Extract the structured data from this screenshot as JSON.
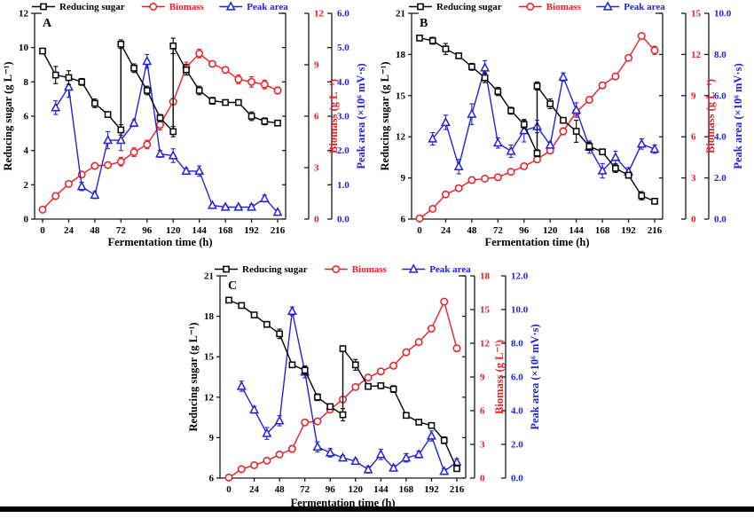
{
  "figure": {
    "background": "#ffffff",
    "bottom_rule_color": "#000000"
  },
  "colors": {
    "reducing_sugar": "#000000",
    "biomass": "#ed1c24",
    "peak_area": "#2222dd",
    "axis_line": "#1a1a1a"
  },
  "legend": {
    "items": [
      {
        "key": "reducing_sugar",
        "label": "Reducing sugar",
        "marker": "square"
      },
      {
        "key": "biomass",
        "label": "Biomass",
        "marker": "circle"
      },
      {
        "key": "peak_area",
        "label": "Peak area",
        "marker": "triangle"
      }
    ]
  },
  "xaxis": {
    "label": "Fermentation time (h)",
    "min": 0,
    "max": 216,
    "tick_step": 24
  },
  "chart_data": [
    {
      "type": "line",
      "panel": "A",
      "axes": {
        "left": {
          "label": "Reducing sugar (g L⁻¹)",
          "min": 0,
          "max": 12,
          "step": 2,
          "decimals": 0,
          "color": "#000000"
        },
        "biomass": {
          "label": "Biomass (g L⁻¹)",
          "min": 0,
          "max": 12,
          "step": 3,
          "decimals": 0,
          "color": "#ed1c24"
        },
        "peak": {
          "label": "Peak area (×10⁶ mV·s)",
          "min": 0,
          "max": 6,
          "step": 1,
          "decimals": 1,
          "color": "#2222dd"
        }
      },
      "series": {
        "reducing_sugar": [
          [
            0,
            9.8,
            0.15
          ],
          [
            12,
            8.4,
            0.5
          ],
          [
            24,
            8.25,
            0.4
          ],
          [
            36,
            8.0,
            0.2
          ],
          [
            48,
            6.75,
            0.25
          ],
          [
            60,
            6.1,
            0.15
          ],
          [
            72,
            5.2,
            0.3
          ],
          [
            72,
            10.2,
            0.25
          ],
          [
            84,
            8.8,
            0.25
          ],
          [
            96,
            7.5,
            0.25
          ],
          [
            108,
            5.9,
            0.2
          ],
          [
            120,
            5.1,
            0.3
          ],
          [
            120,
            10.1,
            0.45
          ],
          [
            132,
            8.7,
            0.3
          ],
          [
            144,
            7.5,
            0.25
          ],
          [
            156,
            6.9,
            0.2
          ],
          [
            168,
            6.8,
            0.1
          ],
          [
            180,
            6.8,
            0.1
          ],
          [
            192,
            6.0,
            0.25
          ],
          [
            204,
            5.7,
            0.2
          ],
          [
            216,
            5.6,
            0.1
          ]
        ],
        "biomass": [
          [
            0,
            0.55,
            0.05
          ],
          [
            12,
            1.35,
            0.1
          ],
          [
            24,
            2.05,
            0.1
          ],
          [
            36,
            2.6,
            0.12
          ],
          [
            48,
            3.1,
            0.12
          ],
          [
            60,
            3.15,
            0.15
          ],
          [
            72,
            3.35,
            0.25
          ],
          [
            84,
            3.9,
            0.25
          ],
          [
            96,
            4.35,
            0.25
          ],
          [
            108,
            5.5,
            0.3
          ],
          [
            120,
            6.85,
            0.1
          ],
          [
            132,
            8.85,
            0.3
          ],
          [
            144,
            9.65,
            0.25
          ],
          [
            156,
            9.05,
            0.15
          ],
          [
            168,
            8.7,
            0.15
          ],
          [
            180,
            8.15,
            0.25
          ],
          [
            192,
            8.0,
            0.3
          ],
          [
            204,
            7.85,
            0.25
          ],
          [
            216,
            7.5,
            0.2
          ]
        ],
        "peak_area": [
          [
            12,
            3.25,
            0.2
          ],
          [
            24,
            3.85,
            0.3
          ],
          [
            36,
            0.95,
            0.12
          ],
          [
            48,
            0.7,
            0.1
          ],
          [
            60,
            2.3,
            0.25
          ],
          [
            72,
            2.3,
            0.3
          ],
          [
            84,
            2.8,
            0.1
          ],
          [
            96,
            4.6,
            0.2
          ],
          [
            108,
            1.9,
            0.1
          ],
          [
            120,
            1.85,
            0.2
          ],
          [
            132,
            1.4,
            0.08
          ],
          [
            144,
            1.4,
            0.15
          ],
          [
            156,
            0.4,
            0.05
          ],
          [
            168,
            0.35,
            0.05
          ],
          [
            180,
            0.35,
            0.05
          ],
          [
            192,
            0.35,
            0.08
          ],
          [
            204,
            0.6,
            0.1
          ],
          [
            216,
            0.2,
            0.05
          ]
        ]
      }
    },
    {
      "type": "line",
      "panel": "B",
      "axes": {
        "left": {
          "label": "Reducing sugar (g L⁻¹)",
          "min": 6,
          "max": 21,
          "step": 3,
          "decimals": 0,
          "color": "#000000"
        },
        "biomass": {
          "label": "Biomass (g L⁻¹)",
          "min": 0,
          "max": 15,
          "step": 3,
          "decimals": 0,
          "color": "#ed1c24"
        },
        "peak": {
          "label": "Peak area (×10⁶ mV·s)",
          "min": 0,
          "max": 10,
          "step": 2,
          "decimals": 1,
          "color": "#2222dd"
        }
      },
      "series": {
        "reducing_sugar": [
          [
            0,
            19.2,
            0.1
          ],
          [
            12,
            19.0,
            0.25
          ],
          [
            24,
            18.4,
            0.4
          ],
          [
            36,
            17.9,
            0.15
          ],
          [
            48,
            17.1,
            0.25
          ],
          [
            60,
            16.3,
            0.35
          ],
          [
            72,
            15.3,
            0.3
          ],
          [
            84,
            13.9,
            0.25
          ],
          [
            96,
            12.9,
            0.3
          ],
          [
            108,
            10.8,
            0.25
          ],
          [
            108,
            15.7,
            0.3
          ],
          [
            120,
            14.4,
            0.35
          ],
          [
            132,
            13.2,
            0.2
          ],
          [
            144,
            12.4,
            0.8
          ],
          [
            156,
            11.3,
            0.3
          ],
          [
            168,
            10.9,
            0.2
          ],
          [
            180,
            9.7,
            0.3
          ],
          [
            192,
            9.2,
            0.2
          ],
          [
            204,
            7.7,
            0.3
          ],
          [
            216,
            7.3,
            0.15
          ]
        ],
        "biomass": [
          [
            0,
            0.05,
            0.05
          ],
          [
            12,
            0.75,
            0.08
          ],
          [
            24,
            1.8,
            0.15
          ],
          [
            36,
            2.25,
            0.15
          ],
          [
            48,
            2.85,
            0.2
          ],
          [
            60,
            2.95,
            0.15
          ],
          [
            72,
            3.05,
            0.15
          ],
          [
            84,
            3.45,
            0.1
          ],
          [
            96,
            3.85,
            0.1
          ],
          [
            108,
            4.35,
            0.15
          ],
          [
            120,
            5.0,
            0.1
          ],
          [
            132,
            6.4,
            0.25
          ],
          [
            144,
            7.8,
            0.2
          ],
          [
            156,
            8.7,
            0.15
          ],
          [
            168,
            9.75,
            0.2
          ],
          [
            180,
            10.4,
            0.2
          ],
          [
            192,
            11.75,
            0.2
          ],
          [
            204,
            13.35,
            0.2
          ],
          [
            216,
            12.3,
            0.3
          ]
        ],
        "peak_area": [
          [
            12,
            3.9,
            0.3
          ],
          [
            24,
            4.7,
            0.35
          ],
          [
            36,
            2.55,
            0.35
          ],
          [
            48,
            5.1,
            0.5
          ],
          [
            60,
            7.35,
            0.35
          ],
          [
            72,
            3.7,
            0.25
          ],
          [
            84,
            3.3,
            0.3
          ],
          [
            96,
            4.3,
            0.55
          ],
          [
            108,
            4.5,
            0.3
          ],
          [
            120,
            3.6,
            0.15
          ],
          [
            132,
            6.9,
            0.2
          ],
          [
            144,
            5.3,
            0.35
          ],
          [
            156,
            3.5,
            0.3
          ],
          [
            168,
            2.35,
            0.35
          ],
          [
            180,
            3.0,
            0.3
          ],
          [
            192,
            2.3,
            0.2
          ],
          [
            204,
            3.65,
            0.25
          ],
          [
            216,
            3.4,
            0.2
          ]
        ]
      }
    },
    {
      "type": "line",
      "panel": "C",
      "axes": {
        "left": {
          "label": "Reducing sugar (g L⁻¹)",
          "min": 6,
          "max": 21,
          "step": 3,
          "decimals": 0,
          "color": "#000000"
        },
        "biomass": {
          "label": "Biomass (g L⁻¹)",
          "min": 0,
          "max": 18,
          "step": 3,
          "decimals": 0,
          "color": "#ed1c24"
        },
        "peak": {
          "label": "Peak area (×10⁶ mV·s)",
          "min": 0,
          "max": 12,
          "step": 2,
          "decimals": 1,
          "color": "#2222dd"
        }
      },
      "series": {
        "reducing_sugar": [
          [
            0,
            19.2,
            0.1
          ],
          [
            12,
            18.8,
            0.2
          ],
          [
            24,
            18.1,
            0.15
          ],
          [
            36,
            17.4,
            0.1
          ],
          [
            48,
            16.7,
            0.35
          ],
          [
            60,
            14.4,
            0.15
          ],
          [
            72,
            14.0,
            0.3
          ],
          [
            84,
            12.0,
            0.25
          ],
          [
            96,
            11.3,
            0.2
          ],
          [
            108,
            10.7,
            0.45
          ],
          [
            108,
            15.6,
            0.2
          ],
          [
            120,
            14.4,
            0.4
          ],
          [
            132,
            12.8,
            0.2
          ],
          [
            144,
            12.85,
            0.15
          ],
          [
            156,
            12.6,
            0.25
          ],
          [
            168,
            10.65,
            0.15
          ],
          [
            180,
            10.15,
            0.2
          ],
          [
            192,
            9.9,
            0.15
          ],
          [
            204,
            8.8,
            0.25
          ],
          [
            216,
            6.7,
            0.2
          ]
        ],
        "biomass": [
          [
            0,
            0.05,
            0.05
          ],
          [
            12,
            0.8,
            0.08
          ],
          [
            24,
            1.15,
            0.08
          ],
          [
            36,
            1.55,
            0.1
          ],
          [
            48,
            2.1,
            0.15
          ],
          [
            60,
            2.6,
            0.3
          ],
          [
            72,
            4.95,
            0.15
          ],
          [
            84,
            5.05,
            0.1
          ],
          [
            96,
            6.1,
            0.15
          ],
          [
            108,
            7.0,
            0.15
          ],
          [
            120,
            8.1,
            0.15
          ],
          [
            132,
            8.95,
            0.2
          ],
          [
            144,
            9.5,
            0.15
          ],
          [
            156,
            10.0,
            0.15
          ],
          [
            168,
            11.2,
            0.15
          ],
          [
            180,
            12.1,
            0.15
          ],
          [
            192,
            13.3,
            0.15
          ],
          [
            204,
            15.7,
            0.2
          ],
          [
            216,
            11.55,
            0.2
          ]
        ],
        "peak_area": [
          [
            12,
            5.45,
            0.3
          ],
          [
            24,
            4.05,
            0.2
          ],
          [
            36,
            2.65,
            0.35
          ],
          [
            48,
            3.4,
            0.3
          ],
          [
            60,
            9.9,
            0.25
          ],
          [
            72,
            6.3,
            0.35
          ],
          [
            84,
            1.85,
            0.3
          ],
          [
            96,
            1.5,
            0.25
          ],
          [
            108,
            1.2,
            0.15
          ],
          [
            120,
            1.0,
            0.15
          ],
          [
            132,
            0.5,
            0.2
          ],
          [
            144,
            1.4,
            0.3
          ],
          [
            156,
            0.6,
            0.15
          ],
          [
            168,
            1.2,
            0.25
          ],
          [
            180,
            1.4,
            0.2
          ],
          [
            192,
            2.5,
            0.3
          ],
          [
            204,
            0.4,
            0.15
          ],
          [
            216,
            0.95,
            0.2
          ]
        ]
      }
    }
  ]
}
